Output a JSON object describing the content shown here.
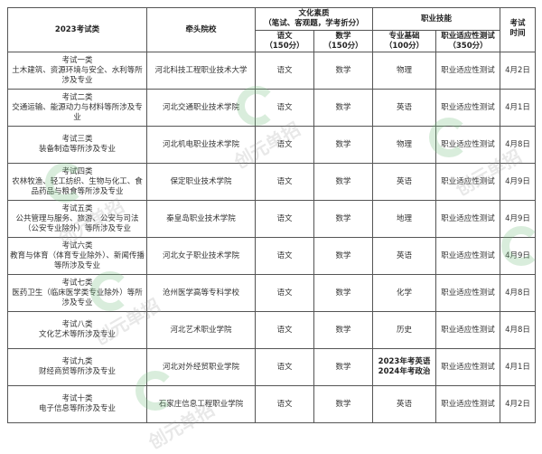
{
  "header": {
    "category": "2023考试类",
    "school": "牵头院校",
    "culture_group": "文化素质\n（笔试、客观题，学考折分）",
    "skill_group": "职业技能",
    "exam_time": "考试\n时间",
    "chinese": "语文\n（150分）",
    "math": "数学\n（150分）",
    "pro_basic": "专业基础\n（100分）",
    "adapt_test": "职业适应性测试\n（350分）"
  },
  "rows": [
    {
      "category": "考试一类\n土木建筑、资源环境与安全、水利等所涉及专业",
      "school": "河北科技工程职业技术大学",
      "chinese": "语文",
      "math": "数学",
      "pro": "物理",
      "adapt": "职业适应性测试",
      "date": "4月2日"
    },
    {
      "category": "考试二类\n交通运输、能源动力与材料等所涉及专业",
      "school": "河北交通职业技术学院",
      "chinese": "语文",
      "math": "数学",
      "pro": "英语",
      "adapt": "职业适应性测试",
      "date": "4月1日"
    },
    {
      "category": "考试三类\n装备制造等所涉及专业",
      "school": "河北机电职业技术学院",
      "chinese": "语文",
      "math": "数学",
      "pro": "物理",
      "adapt": "职业适应性测试",
      "date": "4月8日"
    },
    {
      "category": "考试四类\n农林牧渔、轻工纺织、生物与化工、食品药品与粮食等所涉及专业",
      "school": "保定职业技术学院",
      "chinese": "语文",
      "math": "数学",
      "pro": "英语",
      "adapt": "职业适应性测试",
      "date": "4月9日"
    },
    {
      "category": "考试五类\n公共管理与服务、旅游、公安与司法（公安专业除外）等所涉及专业",
      "school": "秦皇岛职业技术学院",
      "chinese": "语文",
      "math": "数学",
      "pro": "地理",
      "adapt": "职业适应性测试",
      "date": "4月9日"
    },
    {
      "category": "考试六类\n教育与体育（体育专业除外）、新闻传播等所涉及专业",
      "school": "河北女子职业技术学院",
      "chinese": "语文",
      "math": "数学",
      "pro": "英语",
      "adapt": "职业适应性测试",
      "date": "4月9日"
    },
    {
      "category": "考试七类\n医药卫生（临床医学类专业除外）等所涉及专业",
      "school": "沧州医学高等专科学校",
      "chinese": "语文",
      "math": "数学",
      "pro": "化学",
      "adapt": "职业适应性测试",
      "date": "4月8日"
    },
    {
      "category": "考试八类\n文化艺术等所涉及专业",
      "school": "河北艺术职业学院",
      "chinese": "语文",
      "math": "数学",
      "pro": "历史",
      "adapt": "职业适应性测试",
      "date": "4月8日"
    },
    {
      "category": "考试九类\n财经商贸等所涉及专业",
      "school": "河北对外经贸职业学院",
      "chinese": "语文",
      "math": "数学",
      "pro": "2023年考英语\n2024年考政治",
      "adapt": "职业适应性测试",
      "date": "4月1日"
    },
    {
      "category": "考试十类\n电子信息等所涉及专业",
      "school": "石家庄信息工程职业学院",
      "chinese": "语文",
      "math": "数学",
      "pro": "英语",
      "adapt": "职业适应性测试",
      "date": "4月2日"
    }
  ],
  "watermark": {
    "text": "创元单招",
    "color": "#78be82"
  }
}
